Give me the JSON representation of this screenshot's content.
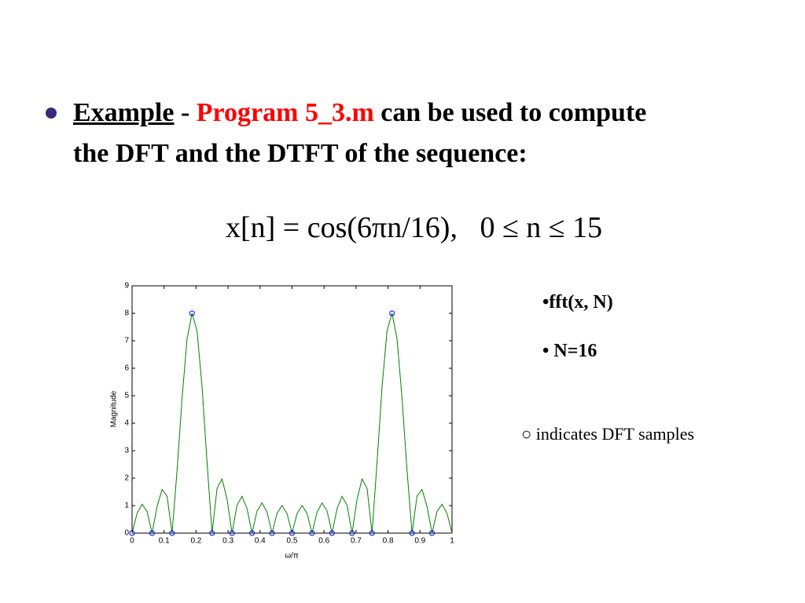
{
  "slide": {
    "bullet": {
      "label": "Example",
      "separator": "-",
      "program": "Program 5_3.m",
      "text": "can be used to compute the DFT and the DTFT of the sequence:"
    },
    "equation": "x[n] = cos(6πn/16),   0 ≤ n ≤ 15",
    "notes": [
      "•fft(x, N)",
      "• N=16"
    ],
    "legend_note": "○ indicates DFT samples"
  },
  "chart_data": {
    "type": "line",
    "xlabel": "ω/π",
    "ylabel": "Magnitude",
    "xlim": [
      0,
      1
    ],
    "ylim": [
      0,
      9
    ],
    "xticks": [
      0,
      0.1,
      0.2,
      0.3,
      0.4,
      0.5,
      0.6,
      0.7,
      0.8,
      0.9,
      1
    ],
    "yticks": [
      0,
      1,
      2,
      3,
      4,
      5,
      6,
      7,
      8,
      9
    ],
    "grid": false,
    "series": [
      {
        "color": "#008000",
        "x": [
          0,
          0.015625,
          0.03125,
          0.046875,
          0.0625,
          0.078125,
          0.09375,
          0.109375,
          0.125,
          0.140625,
          0.15625,
          0.171875,
          0.1875,
          0.203125,
          0.21875,
          0.234375,
          0.25,
          0.265625,
          0.28125,
          0.296875,
          0.3125,
          0.328125,
          0.34375,
          0.359375,
          0.375,
          0.390625,
          0.40625,
          0.421875,
          0.4375,
          0.453125,
          0.46875,
          0.484375,
          0.5,
          0.515625,
          0.53125,
          0.546875,
          0.5625,
          0.578125,
          0.59375,
          0.609375,
          0.625,
          0.640625,
          0.65625,
          0.671875,
          0.6875,
          0.703125,
          0.71875,
          0.734375,
          0.75,
          0.765625,
          0.78125,
          0.796875,
          0.8125,
          0.828125,
          0.84375,
          0.859375,
          0.875,
          0.890625,
          0.90625,
          0.921875,
          0.9375,
          0.953125,
          0.96875,
          0.984375,
          1
        ],
        "values": [
          0,
          0.72,
          1.05,
          0.79,
          0,
          0.97,
          1.59,
          1.35,
          0,
          2.28,
          4.91,
          7.07,
          8,
          7.36,
          5.32,
          2.57,
          0,
          1.63,
          1.97,
          1.23,
          0,
          1.02,
          1.34,
          0.89,
          0,
          0.81,
          1.1,
          0.76,
          0,
          0.72,
          1.01,
          0.71,
          0,
          0.71,
          1.01,
          0.72,
          0,
          0.76,
          1.1,
          0.81,
          0,
          0.89,
          1.34,
          1.02,
          0,
          1.23,
          1.97,
          1.63,
          0,
          2.57,
          5.32,
          7.36,
          8,
          7.07,
          4.91,
          2.28,
          0,
          1.35,
          1.59,
          0.97,
          0,
          0.79,
          1.05,
          0.72,
          0
        ]
      },
      {
        "color": "#0000ff",
        "marker": "o",
        "line": false,
        "x": [
          0,
          0.0625,
          0.125,
          0.1875,
          0.25,
          0.3125,
          0.375,
          0.4375,
          0.5,
          0.5625,
          0.625,
          0.6875,
          0.75,
          0.8125,
          0.875,
          0.9375
        ],
        "values": [
          0,
          0,
          0,
          8,
          0,
          0,
          0,
          0,
          0,
          0,
          0,
          0,
          0,
          8,
          0,
          0
        ]
      }
    ]
  }
}
